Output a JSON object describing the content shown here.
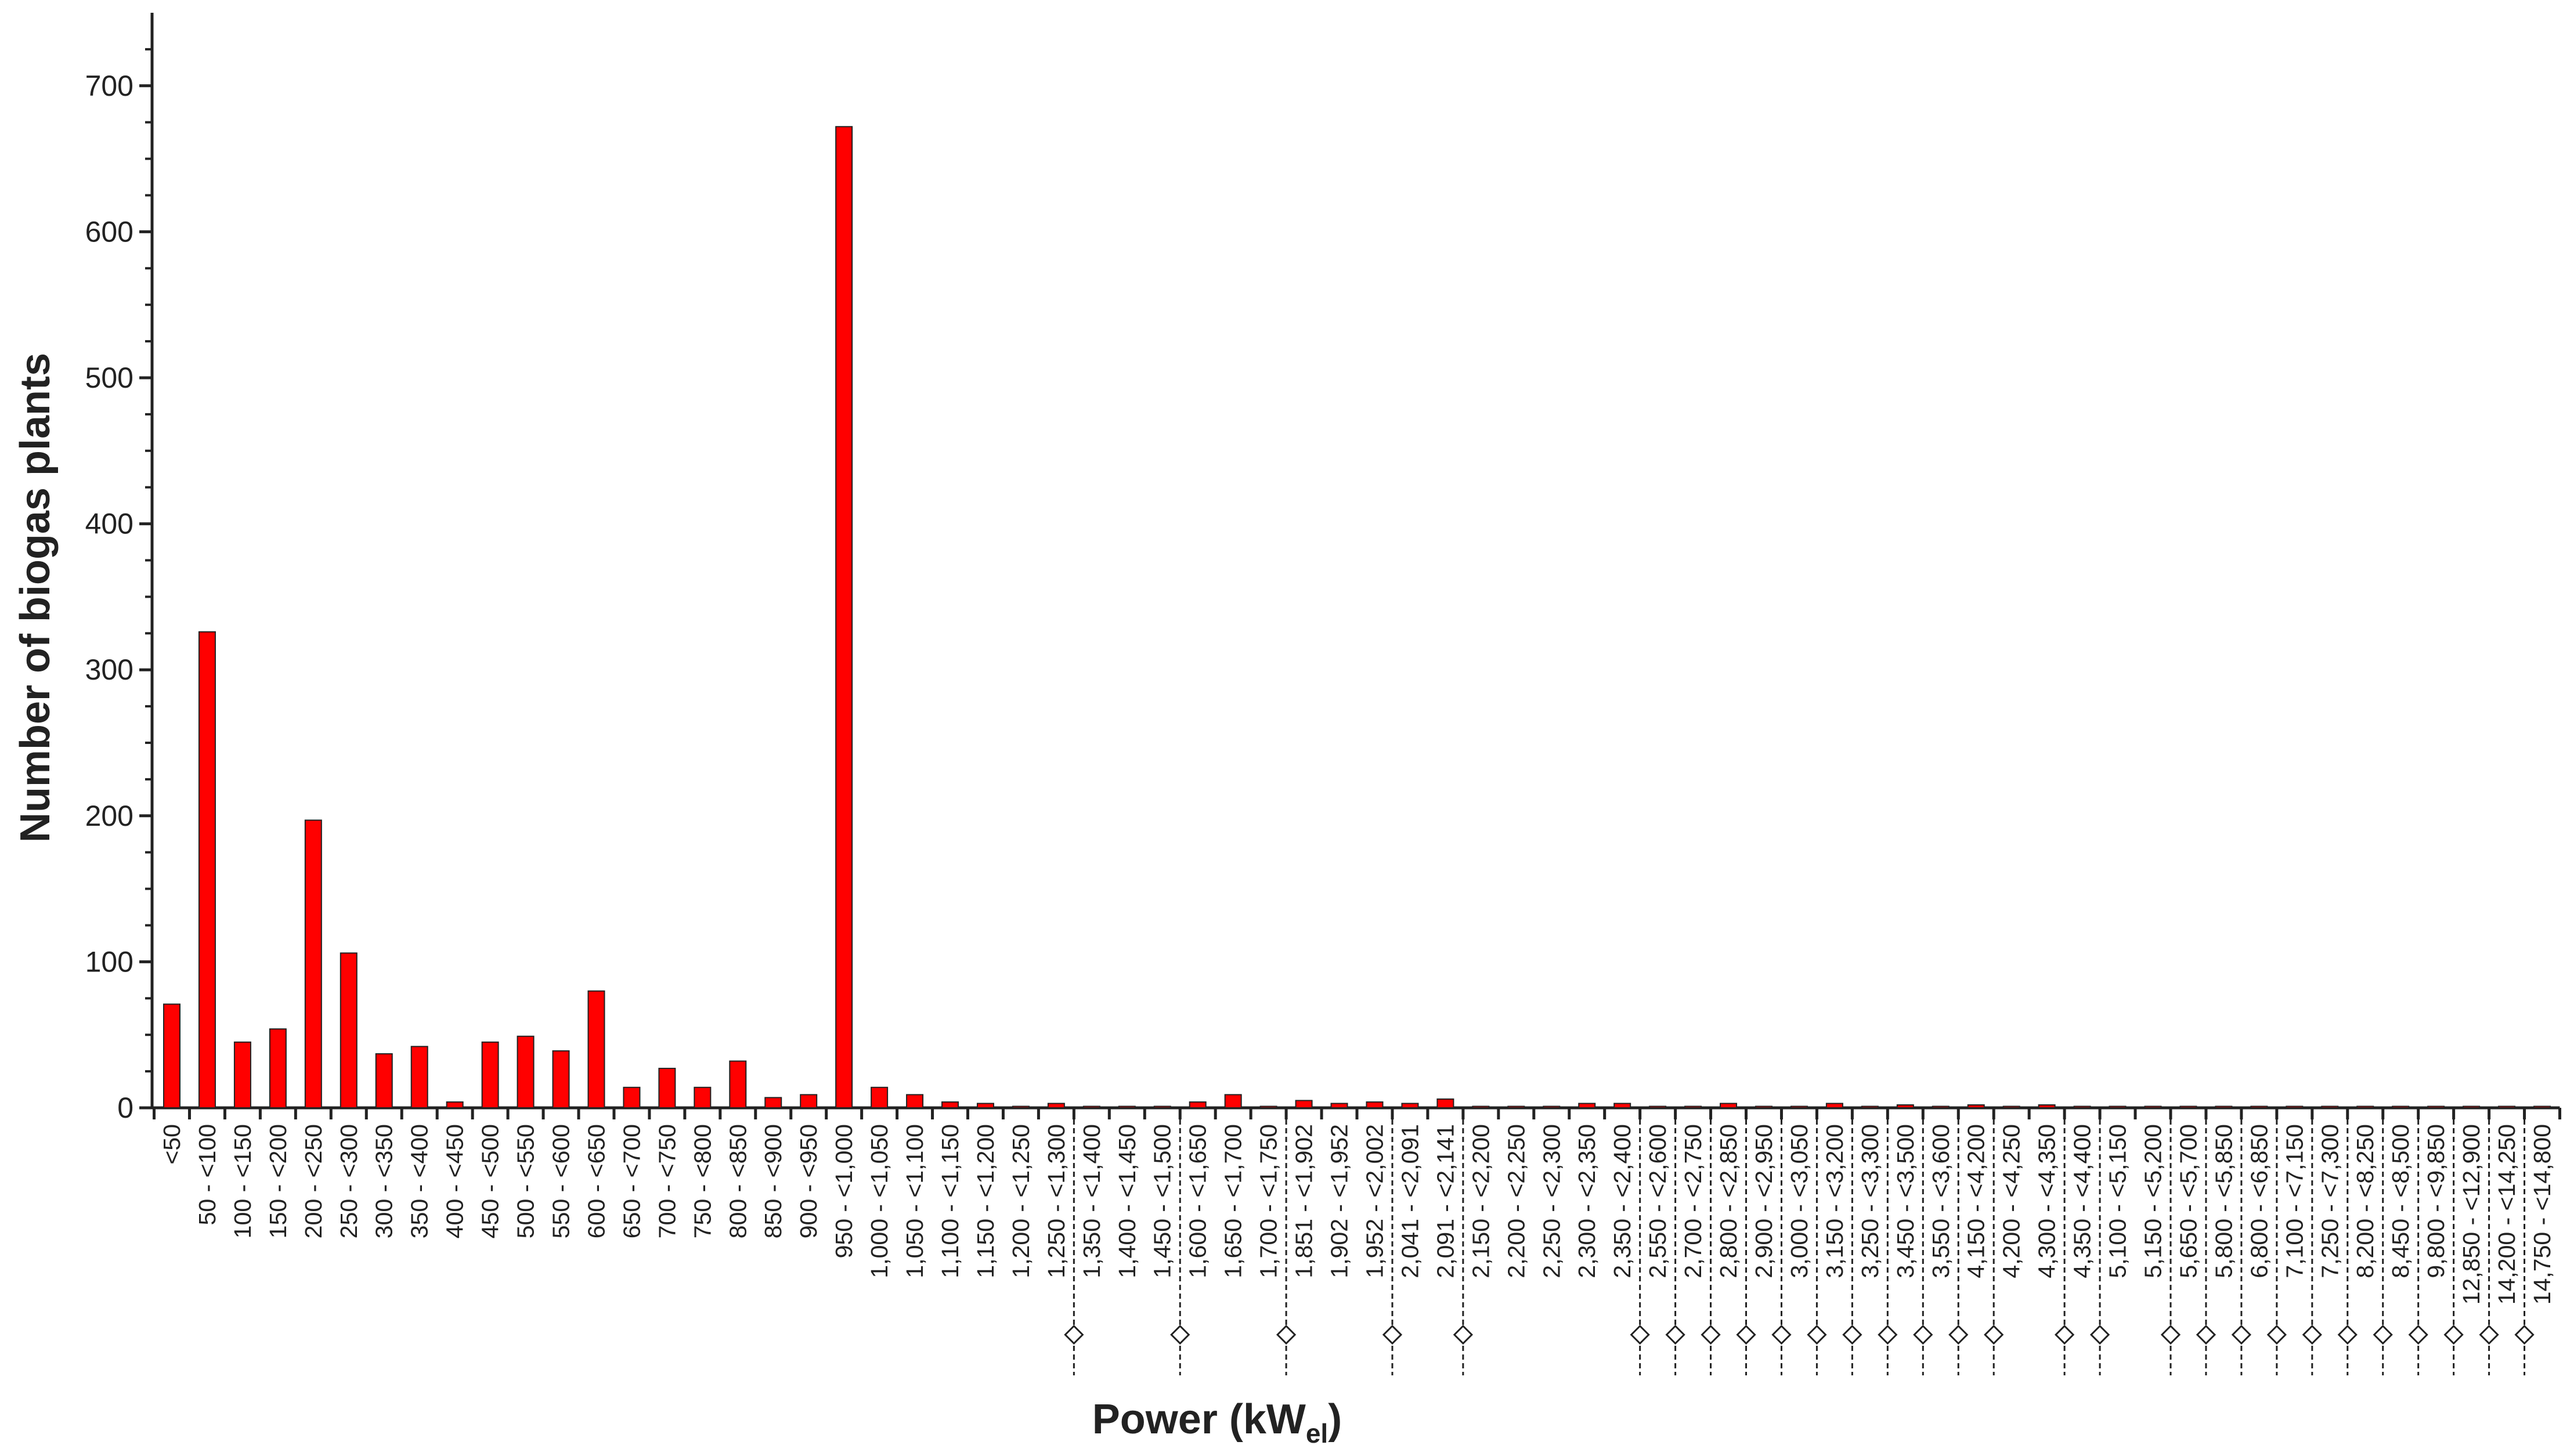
{
  "chart_data": {
    "type": "bar",
    "xlabel_main": "Power (kW",
    "xlabel_sub": "el",
    "xlabel_end": ")",
    "ylabel": "Number of biogas plants",
    "ylim": [
      0,
      750
    ],
    "yticks": [
      "0",
      "100",
      "200",
      "300",
      "400",
      "500",
      "600",
      "700"
    ],
    "bar_color": "#ff0000",
    "grid": false,
    "legend": "none",
    "categories": [
      "<50",
      "50 - <100",
      "100 - <150",
      "150 - <200",
      "200 - <250",
      "250 - <300",
      "300 - <350",
      "350 - <400",
      "400 - <450",
      "450 - <500",
      "500 - <550",
      "550 - <600",
      "600 - <650",
      "650 - <700",
      "700 - <750",
      "750 - <800",
      "800 - <850",
      "850 - <900",
      "900 - <950",
      "950 - <1,000",
      "1,000 - <1,050",
      "1,050 - <1,100",
      "1,100 - <1,150",
      "1,150 - <1,200",
      "1,200 - <1,250",
      "1,250 - <1,300",
      "1,350 - <1,400",
      "1,400 - <1,450",
      "1,450 - <1,500",
      "1,600 - <1,650",
      "1,650 - <1,700",
      "1,700 - <1,750",
      "1,851 - <1,902",
      "1,902 - <1,952",
      "1,952 - <2,002",
      "2,041 - <2,091",
      "2,091 - <2,141",
      "2,150 - <2,200",
      "2,200 - <2,250",
      "2,250 - <2,300",
      "2,300 - <2,350",
      "2,350 - <2,400",
      "2,550 - <2,600",
      "2,700 - <2,750",
      "2,800 - <2,850",
      "2,900 - <2,950",
      "3,000 - <3,050",
      "3,150 - <3,200",
      "3,250 - <3,300",
      "3,450 - <3,500",
      "3,550 - <3,600",
      "4,150 - <4,200",
      "4,200 - <4,250",
      "4,300 - <4,350",
      "4,350 - <4,400",
      "5,100 - <5,150",
      "5,150 - <5,200",
      "5,650 - <5,700",
      "5,800 - <5,850",
      "6,800 - <6,850",
      "7,100 - <7,150",
      "7,250 - <7,300",
      "8,200 - <8,250",
      "8,450 - <8,500",
      "9,800 - <9,850",
      "12,850 - <12,900",
      "14,200 - <14,250",
      "14,750 - <14,800"
    ],
    "values": [
      71,
      326,
      45,
      54,
      197,
      106,
      37,
      42,
      4,
      45,
      49,
      39,
      80,
      14,
      27,
      14,
      32,
      7,
      9,
      672,
      14,
      9,
      4,
      3,
      1,
      3,
      1,
      1,
      1,
      4,
      9,
      1,
      5,
      3,
      4,
      3,
      6,
      1,
      1,
      1,
      3,
      3,
      1,
      1,
      3,
      1,
      1,
      3,
      1,
      2,
      1,
      2,
      1,
      2,
      1,
      1,
      1,
      1,
      1,
      1,
      1,
      1,
      1,
      1,
      1,
      1,
      1,
      1
    ],
    "axis_breaks_after": [
      "1,250 - <1,300",
      "1,450 - <1,500",
      "1,700 - <1,750",
      "1,952 - <2,002",
      "2,091 - <2,141",
      "2,350 - <2,400",
      "2,550 - <2,600",
      "2,700 - <2,750",
      "2,800 - <2,850",
      "2,900 - <2,950",
      "3,000 - <3,050",
      "3,150 - <3,200",
      "3,250 - <3,300",
      "3,450 - <3,500",
      "3,550 - <3,600",
      "4,150 - <4,200",
      "4,300 - <4,350",
      "4,350 - <4,400",
      "5,150 - <5,200",
      "5,650 - <5,700",
      "5,800 - <5,850",
      "6,800 - <6,850",
      "7,100 - <7,150",
      "7,250 - <7,300",
      "8,200 - <8,250",
      "8,450 - <8,500",
      "9,800 - <9,850",
      "12,850 - <12,900",
      "14,200 - <14,250"
    ]
  }
}
